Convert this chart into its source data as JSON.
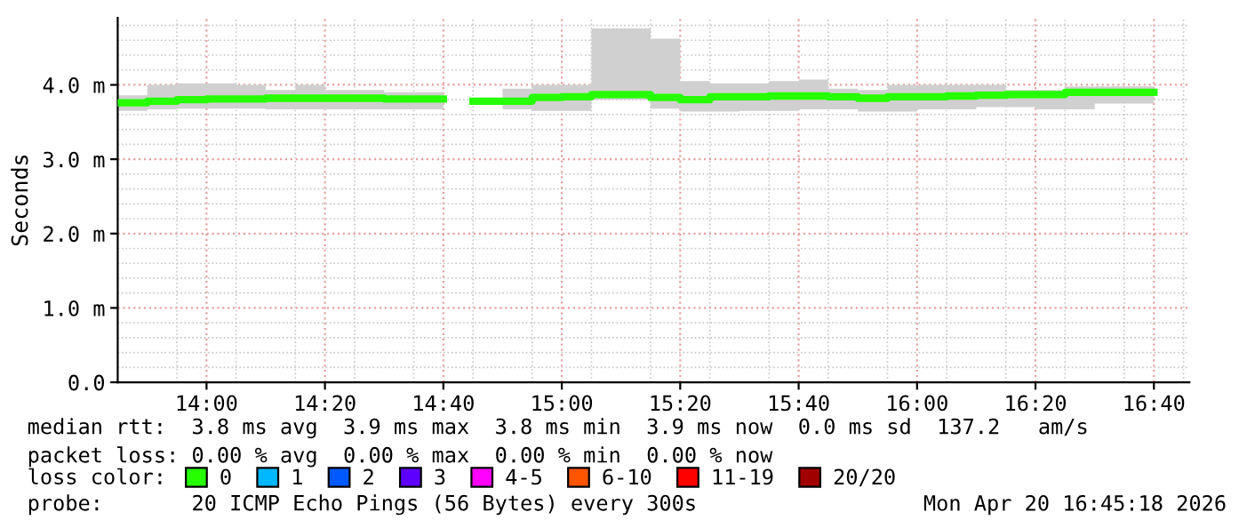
{
  "chart_data": {
    "type": "step",
    "ylabel": "Seconds",
    "legend": "bottom",
    "legend_title": "loss color:",
    "grid": true,
    "x": [
      "2026-04-20T13:45",
      "2026-04-20T13:50",
      "2026-04-20T13:55",
      "2026-04-20T14:00",
      "2026-04-20T14:05",
      "2026-04-20T14:10",
      "2026-04-20T14:15",
      "2026-04-20T14:20",
      "2026-04-20T14:25",
      "2026-04-20T14:30",
      "2026-04-20T14:35",
      "2026-04-20T14:40",
      "2026-04-20T14:45",
      "2026-04-20T14:50",
      "2026-04-20T14:55",
      "2026-04-20T15:00",
      "2026-04-20T15:05",
      "2026-04-20T15:10",
      "2026-04-20T15:15",
      "2026-04-20T15:20",
      "2026-04-20T15:25",
      "2026-04-20T15:30",
      "2026-04-20T15:35",
      "2026-04-20T15:40",
      "2026-04-20T15:45",
      "2026-04-20T15:50",
      "2026-04-20T15:55",
      "2026-04-20T16:00",
      "2026-04-20T16:05",
      "2026-04-20T16:10",
      "2026-04-20T16:15",
      "2026-04-20T16:20",
      "2026-04-20T16:25",
      "2026-04-20T16:30",
      "2026-04-20T16:35",
      "2026-04-20T16:40"
    ],
    "series": [
      {
        "name": "0",
        "color": "#26ff00",
        "values": [
          3.76,
          3.76,
          3.78,
          3.8,
          3.81,
          3.81,
          3.82,
          3.82,
          3.82,
          3.82,
          3.81,
          3.81,
          null,
          3.78,
          3.78,
          3.83,
          3.84,
          3.87,
          3.87,
          3.83,
          3.8,
          3.84,
          3.84,
          3.85,
          3.85,
          3.84,
          3.82,
          3.84,
          3.84,
          3.85,
          3.86,
          3.87,
          3.87,
          3.9,
          3.9,
          3.9
        ],
        "lower": [
          3.65,
          3.65,
          3.67,
          3.68,
          3.68,
          3.68,
          3.67,
          3.67,
          3.67,
          3.67,
          3.67,
          3.67,
          null,
          3.67,
          3.67,
          3.65,
          3.65,
          3.8,
          3.8,
          3.68,
          3.64,
          3.64,
          3.65,
          3.65,
          3.67,
          3.67,
          3.64,
          3.64,
          3.67,
          3.67,
          3.7,
          3.7,
          3.67,
          3.67,
          3.75,
          3.75
        ],
        "upper": [
          3.86,
          3.86,
          4.0,
          4.02,
          4.02,
          4.0,
          3.93,
          4.0,
          3.93,
          3.93,
          3.9,
          3.9,
          null,
          3.95,
          3.95,
          4.0,
          4.0,
          4.76,
          4.76,
          4.62,
          4.05,
          4.02,
          4.02,
          4.05,
          4.07,
          3.95,
          3.93,
          4.0,
          4.0,
          4.0,
          4.0,
          3.93,
          3.93,
          3.98,
          3.98,
          3.98
        ]
      },
      {
        "name": "1",
        "color": "#00b8ff",
        "values": [
          null,
          null,
          null,
          null,
          null,
          null,
          null,
          null,
          null,
          null,
          null,
          null,
          null,
          null,
          null,
          null,
          null,
          null,
          null,
          null,
          null,
          null,
          null,
          null,
          null,
          null,
          null,
          null,
          null,
          null,
          null,
          null,
          null,
          null,
          null,
          null
        ]
      },
      {
        "name": "2",
        "color": "#0059ff",
        "values": [
          null,
          null,
          null,
          null,
          null,
          null,
          null,
          null,
          null,
          null,
          null,
          null,
          null,
          null,
          null,
          null,
          null,
          null,
          null,
          null,
          null,
          null,
          null,
          null,
          null,
          null,
          null,
          null,
          null,
          null,
          null,
          null,
          null,
          null,
          null,
          null
        ]
      },
      {
        "name": "3",
        "color": "#5e00ff",
        "values": [
          null,
          null,
          null,
          null,
          null,
          null,
          null,
          null,
          null,
          null,
          null,
          null,
          null,
          null,
          null,
          null,
          null,
          null,
          null,
          null,
          null,
          null,
          null,
          null,
          null,
          null,
          null,
          null,
          null,
          null,
          null,
          null,
          null,
          null,
          null,
          null
        ]
      },
      {
        "name": "4-5",
        "color": "#ff00ff",
        "values": [
          null,
          null,
          null,
          null,
          null,
          null,
          null,
          null,
          null,
          null,
          null,
          null,
          null,
          null,
          null,
          null,
          null,
          null,
          null,
          null,
          null,
          null,
          null,
          null,
          null,
          null,
          null,
          null,
          null,
          null,
          null,
          null,
          null,
          null,
          null,
          null
        ]
      },
      {
        "name": "6-10",
        "color": "#ff5500",
        "values": [
          null,
          null,
          null,
          null,
          null,
          null,
          null,
          null,
          null,
          null,
          null,
          null,
          null,
          null,
          null,
          null,
          null,
          null,
          null,
          null,
          null,
          null,
          null,
          null,
          null,
          null,
          null,
          null,
          null,
          null,
          null,
          null,
          null,
          null,
          null,
          null
        ]
      },
      {
        "name": "11-19",
        "color": "#ff0000",
        "values": [
          null,
          null,
          null,
          null,
          null,
          null,
          null,
          null,
          null,
          null,
          null,
          null,
          null,
          null,
          null,
          null,
          null,
          null,
          null,
          null,
          null,
          null,
          null,
          null,
          null,
          null,
          null,
          null,
          null,
          null,
          null,
          null,
          null,
          null,
          null,
          null
        ]
      },
      {
        "name": "20/20",
        "color": "#a10000",
        "values": [
          null,
          null,
          null,
          null,
          null,
          null,
          null,
          null,
          null,
          null,
          null,
          null,
          null,
          null,
          null,
          null,
          null,
          null,
          null,
          null,
          null,
          null,
          null,
          null,
          null,
          null,
          null,
          null,
          null,
          null,
          null,
          null,
          null,
          null,
          null,
          null
        ]
      }
    ],
    "xlim": [
      "2026-04-20T13:45",
      "2026-04-20T16:46"
    ],
    "xticks": [
      {
        "value": "2026-04-20T14:00",
        "label": "14:00"
      },
      {
        "value": "2026-04-20T14:20",
        "label": "14:20"
      },
      {
        "value": "2026-04-20T14:40",
        "label": "14:40"
      },
      {
        "value": "2026-04-20T15:00",
        "label": "15:00"
      },
      {
        "value": "2026-04-20T15:20",
        "label": "15:20"
      },
      {
        "value": "2026-04-20T15:40",
        "label": "15:40"
      },
      {
        "value": "2026-04-20T16:00",
        "label": "16:00"
      },
      {
        "value": "2026-04-20T16:20",
        "label": "16:20"
      },
      {
        "value": "2026-04-20T16:40",
        "label": "16:40"
      }
    ],
    "ylim": [
      0,
      4.9
    ],
    "yticks": [
      {
        "value": 0,
        "label": "0.0"
      },
      {
        "value": 1,
        "label": "1.0 m"
      },
      {
        "value": 2,
        "label": "2.0 m"
      },
      {
        "value": 3,
        "label": "3.0 m"
      },
      {
        "value": 4,
        "label": "4.0 m"
      }
    ],
    "annotations": [
      "median rtt:  3.8 ms avg  3.9 ms max  3.8 ms min  3.9 ms now  0.0 ms sd  137.2   am/s",
      "packet loss: 0.00 % avg  0.00 % max  0.00 % min  0.00 % now",
      "probe:       20 ICMP Echo Pings (56 Bytes) every 300s",
      "Mon Apr 20 16:45:18 2026"
    ]
  }
}
